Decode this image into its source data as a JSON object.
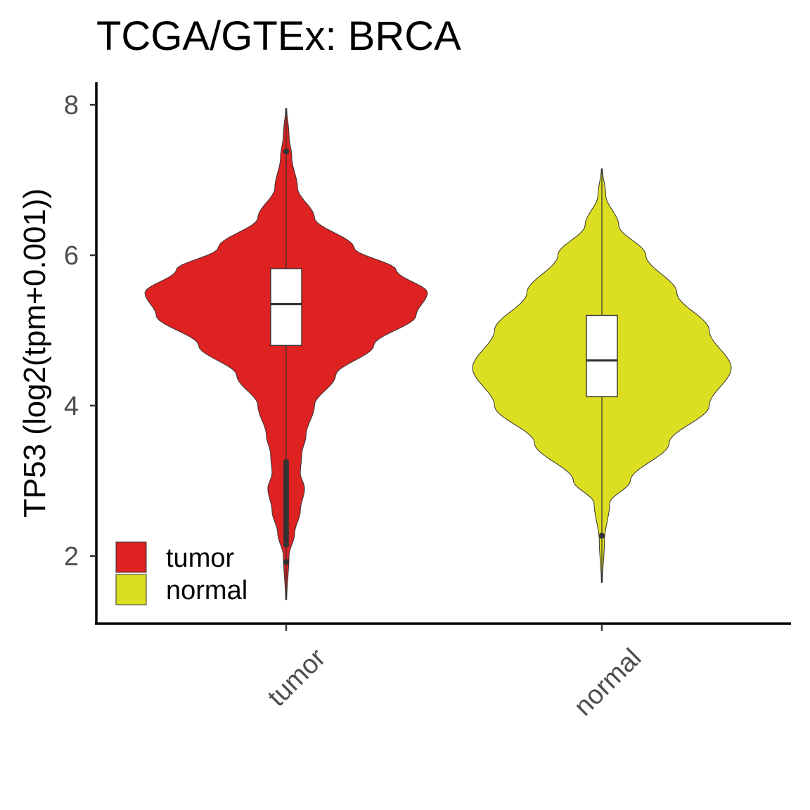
{
  "chart_data": {
    "type": "violin",
    "title": "TCGA/GTEx: BRCA",
    "xlabel": "",
    "ylabel": "TP53 (log2(tpm+0.001))",
    "categories": [
      "tumor",
      "normal"
    ],
    "ylim": [
      1.1,
      8.3
    ],
    "yticks": [
      2,
      4,
      6,
      8
    ],
    "x_tick_rotation": -45,
    "grid": false,
    "legend": {
      "position": "bottom-left",
      "entries": [
        {
          "label": "tumor",
          "color": "#DE2121"
        },
        {
          "label": "normal",
          "color": "#DCDE21"
        }
      ]
    },
    "series": [
      {
        "category": "tumor",
        "color": "#DE2121",
        "whisker_low": 3.25,
        "q1": 4.8,
        "median": 5.35,
        "q3": 5.82,
        "whisker_high": 7.35,
        "min": 1.42,
        "max": 7.95,
        "outliers": [
          7.38,
          3.25,
          3.2,
          3.15,
          3.1,
          3.05,
          3.0,
          2.95,
          2.9,
          2.85,
          2.8,
          2.75,
          2.7,
          2.65,
          2.6,
          2.55,
          2.5,
          2.45,
          2.4,
          2.35,
          2.3,
          2.25,
          2.2,
          2.15,
          1.92
        ],
        "density": [
          [
            1.42,
            0.004
          ],
          [
            2.0,
            0.02
          ],
          [
            2.3,
            0.06
          ],
          [
            2.6,
            0.1
          ],
          [
            2.9,
            0.13
          ],
          [
            3.1,
            0.1
          ],
          [
            3.35,
            0.11
          ],
          [
            3.6,
            0.14
          ],
          [
            4.0,
            0.2
          ],
          [
            4.4,
            0.35
          ],
          [
            4.8,
            0.62
          ],
          [
            5.2,
            0.92
          ],
          [
            5.5,
            1.0
          ],
          [
            5.8,
            0.78
          ],
          [
            6.1,
            0.48
          ],
          [
            6.5,
            0.2
          ],
          [
            6.9,
            0.08
          ],
          [
            7.3,
            0.04
          ],
          [
            7.6,
            0.02
          ],
          [
            7.95,
            0.004
          ]
        ]
      },
      {
        "category": "normal",
        "color": "#DCDE21",
        "whisker_low": 3.22,
        "q1": 4.12,
        "median": 4.6,
        "q3": 5.2,
        "whisker_high": 7.1,
        "min": 1.65,
        "max": 7.15,
        "outliers": [
          2.27
        ],
        "density": [
          [
            1.65,
            0.004
          ],
          [
            2.2,
            0.02
          ],
          [
            2.7,
            0.06
          ],
          [
            3.0,
            0.22
          ],
          [
            3.5,
            0.52
          ],
          [
            4.0,
            0.83
          ],
          [
            4.5,
            1.0
          ],
          [
            5.0,
            0.83
          ],
          [
            5.5,
            0.58
          ],
          [
            6.0,
            0.34
          ],
          [
            6.4,
            0.13
          ],
          [
            6.8,
            0.03
          ],
          [
            7.15,
            0.004
          ]
        ]
      }
    ]
  }
}
